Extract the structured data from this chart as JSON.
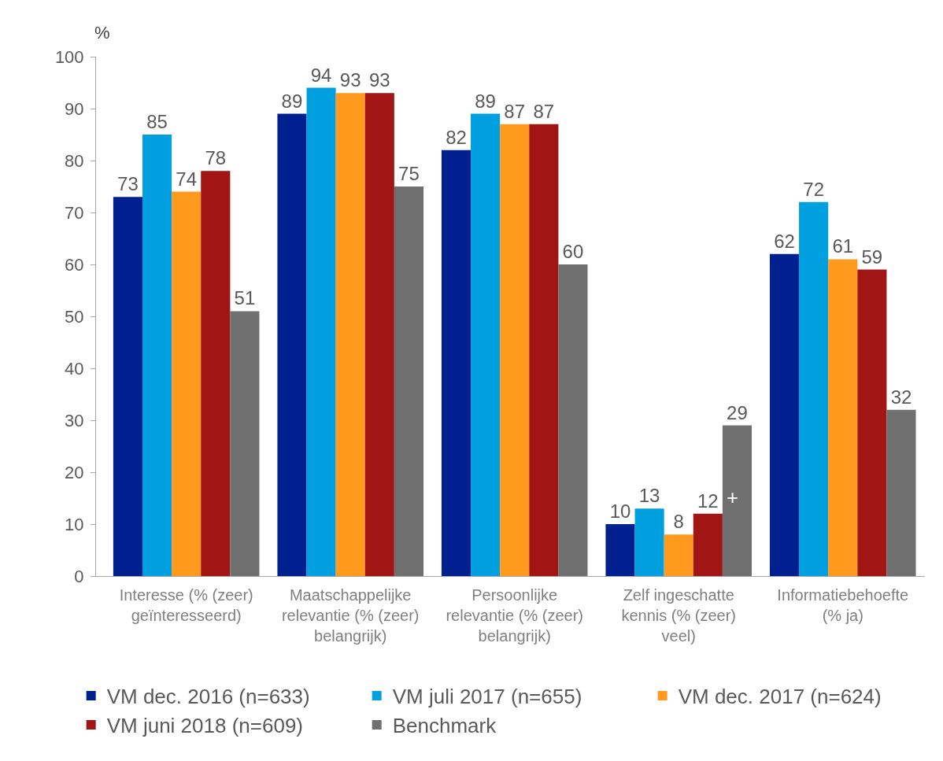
{
  "chart_data": {
    "type": "bar",
    "ylabel": "%",
    "categories": [
      "Interesse (% (zeer) geïnteresseerd)",
      "Maatschappelijke relevantie (% (zeer) belangrijk)",
      "Persoonlijke relevantie (% (zeer) belangrijk)",
      "Zelf ingeschatte kennis (% (zeer) veel)",
      "Informatiebehoefte (% ja)"
    ],
    "series": [
      {
        "name": "VM dec. 2016 (n=633)",
        "color": "#00208f",
        "values": [
          73,
          89,
          82,
          10,
          62
        ]
      },
      {
        "name": "VM juli 2017 (n=655)",
        "color": "#00a0e0",
        "values": [
          85,
          94,
          89,
          13,
          72
        ]
      },
      {
        "name": "VM dec. 2017 (n=624)",
        "color": "#ff9a1f",
        "values": [
          74,
          93,
          87,
          8,
          61
        ]
      },
      {
        "name": "VM juni 2018 (n=609)",
        "color": "#a11515",
        "values": [
          78,
          93,
          87,
          12,
          59
        ]
      },
      {
        "name": "Benchmark",
        "color": "#707070",
        "values": [
          51,
          75,
          60,
          29,
          32
        ]
      }
    ],
    "ylim": [
      0,
      100
    ],
    "yticks": [
      0,
      10,
      20,
      30,
      40,
      50,
      60,
      70,
      80,
      90,
      100
    ],
    "annotations": [
      "+"
    ],
    "data_labels": true,
    "grid": false,
    "legend": "bottom"
  }
}
